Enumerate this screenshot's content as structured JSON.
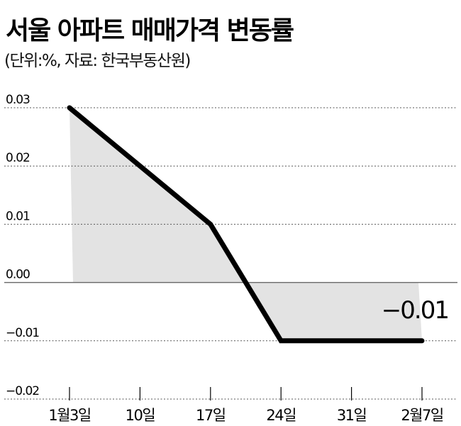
{
  "chart_data": {
    "type": "line",
    "title": "서울 아파트 매매가격 변동률",
    "subtitle": "(단위:%, 자료: 한국부동산원)",
    "categories": [
      "1월3일",
      "10일",
      "17일",
      "24일",
      "31일",
      "2월7일"
    ],
    "values": [
      0.03,
      0.02,
      0.01,
      -0.01,
      -0.01,
      -0.01
    ],
    "yticks": [
      0.03,
      0.02,
      0.01,
      0.0,
      -0.01,
      -0.02
    ],
    "ytick_labels": [
      "0.03",
      "0.02",
      "0.01",
      "0.00",
      "−0.01",
      "−0.02"
    ],
    "ylim": [
      -0.02,
      0.03
    ],
    "last_value_label": "−0.01",
    "grid": "dotted-horizontal",
    "fill_color": "#e3e3e3",
    "line_color": "#000000"
  }
}
